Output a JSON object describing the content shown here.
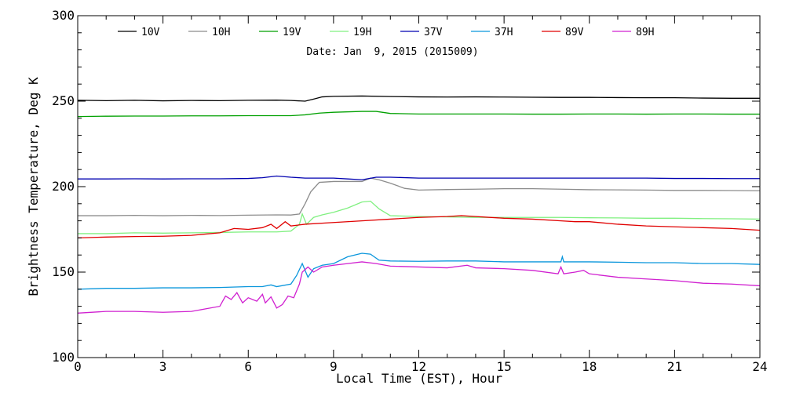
{
  "chart_data": {
    "type": "line",
    "title": "Date: Jan  9, 2015 (2015009)",
    "xlabel": "Local Time (EST), Hour",
    "ylabel": "Brightness Temperature, Deg K",
    "xlim": [
      0,
      24
    ],
    "ylim": [
      100,
      300
    ],
    "xticks": [
      0,
      3,
      6,
      9,
      12,
      15,
      18,
      21,
      24
    ],
    "yticks": [
      100,
      150,
      200,
      250,
      300
    ],
    "grid": false,
    "legend_position": "top",
    "series": [
      {
        "name": "10V",
        "color": "#000000",
        "points": [
          [
            0,
            250.5
          ],
          [
            1,
            250.3
          ],
          [
            2,
            250.5
          ],
          [
            3,
            250.2
          ],
          [
            4,
            250.4
          ],
          [
            5,
            250.3
          ],
          [
            6,
            250.5
          ],
          [
            7,
            250.6
          ],
          [
            7.5,
            250.4
          ],
          [
            8,
            250.0
          ],
          [
            8.3,
            251.2
          ],
          [
            8.6,
            252.5
          ],
          [
            9,
            252.8
          ],
          [
            10,
            253.0
          ],
          [
            11,
            252.7
          ],
          [
            12,
            252.5
          ],
          [
            13,
            252.4
          ],
          [
            14,
            252.5
          ],
          [
            15,
            252.4
          ],
          [
            16,
            252.3
          ],
          [
            17,
            252.2
          ],
          [
            18,
            252.2
          ],
          [
            19,
            252.1
          ],
          [
            20,
            252.0
          ],
          [
            21,
            252.0
          ],
          [
            22,
            251.8
          ],
          [
            23,
            251.7
          ],
          [
            24,
            251.7
          ]
        ]
      },
      {
        "name": "10H",
        "color": "#8c8c8c",
        "points": [
          [
            0,
            183
          ],
          [
            1,
            183
          ],
          [
            2,
            183.2
          ],
          [
            3,
            183
          ],
          [
            4,
            183.2
          ],
          [
            5,
            183.1
          ],
          [
            6,
            183.3
          ],
          [
            7,
            183.5
          ],
          [
            7.5,
            183.4
          ],
          [
            7.8,
            184
          ],
          [
            8,
            190
          ],
          [
            8.2,
            197
          ],
          [
            8.5,
            202.5
          ],
          [
            9,
            203
          ],
          [
            10,
            203
          ],
          [
            10.3,
            205
          ],
          [
            10.6,
            204
          ],
          [
            11,
            202
          ],
          [
            11.5,
            199
          ],
          [
            12,
            198
          ],
          [
            13,
            198.3
          ],
          [
            14,
            198.5
          ],
          [
            15,
            198.8
          ],
          [
            16,
            198.8
          ],
          [
            17,
            198.5
          ],
          [
            18,
            198.2
          ],
          [
            19,
            198.1
          ],
          [
            20,
            198
          ],
          [
            21,
            197.8
          ],
          [
            22,
            197.8
          ],
          [
            23,
            197.7
          ],
          [
            24,
            197.6
          ]
        ]
      },
      {
        "name": "19V",
        "color": "#00a000",
        "points": [
          [
            0,
            241
          ],
          [
            1,
            241.2
          ],
          [
            2,
            241.3
          ],
          [
            3,
            241.3
          ],
          [
            4,
            241.4
          ],
          [
            5,
            241.4
          ],
          [
            6,
            241.5
          ],
          [
            7,
            241.5
          ],
          [
            7.5,
            241.5
          ],
          [
            8,
            242
          ],
          [
            8.5,
            243
          ],
          [
            9,
            243.5
          ],
          [
            10,
            244
          ],
          [
            10.5,
            244
          ],
          [
            11,
            242.8
          ],
          [
            12,
            242.5
          ],
          [
            13,
            242.5
          ],
          [
            14,
            242.5
          ],
          [
            15,
            242.5
          ],
          [
            16,
            242.4
          ],
          [
            17,
            242.4
          ],
          [
            18,
            242.5
          ],
          [
            19,
            242.5
          ],
          [
            20,
            242.4
          ],
          [
            21,
            242.5
          ],
          [
            22,
            242.5
          ],
          [
            23,
            242.4
          ],
          [
            24,
            242.4
          ]
        ]
      },
      {
        "name": "19H",
        "color": "#80f080",
        "points": [
          [
            0,
            172.5
          ],
          [
            1,
            172.5
          ],
          [
            2,
            173
          ],
          [
            3,
            172.8
          ],
          [
            4,
            173
          ],
          [
            5,
            173.2
          ],
          [
            6,
            173.5
          ],
          [
            7,
            173.5
          ],
          [
            7.5,
            174
          ],
          [
            7.8,
            178
          ],
          [
            7.9,
            184
          ],
          [
            8.05,
            178
          ],
          [
            8.3,
            182
          ],
          [
            8.6,
            183.5
          ],
          [
            9,
            185
          ],
          [
            9.5,
            187.5
          ],
          [
            10,
            191
          ],
          [
            10.3,
            191.5
          ],
          [
            10.6,
            187
          ],
          [
            11,
            183
          ],
          [
            12,
            182.5
          ],
          [
            13,
            182.3
          ],
          [
            14,
            182
          ],
          [
            15,
            182
          ],
          [
            16,
            182
          ],
          [
            17,
            182
          ],
          [
            18,
            181.8
          ],
          [
            19,
            181.7
          ],
          [
            20,
            181.5
          ],
          [
            21,
            181.5
          ],
          [
            22,
            181.3
          ],
          [
            23,
            181.2
          ],
          [
            24,
            181
          ]
        ]
      },
      {
        "name": "37V",
        "color": "#0000b0",
        "points": [
          [
            0,
            204.5
          ],
          [
            1,
            204.5
          ],
          [
            2,
            204.6
          ],
          [
            3,
            204.5
          ],
          [
            4,
            204.6
          ],
          [
            5,
            204.6
          ],
          [
            6,
            204.8
          ],
          [
            6.5,
            205.2
          ],
          [
            7,
            206.2
          ],
          [
            7.5,
            205.5
          ],
          [
            8,
            205
          ],
          [
            9,
            205
          ],
          [
            9.5,
            204.5
          ],
          [
            10,
            204
          ],
          [
            10.5,
            205.5
          ],
          [
            11,
            205.5
          ],
          [
            12,
            205
          ],
          [
            13,
            205
          ],
          [
            14,
            205
          ],
          [
            15,
            205
          ],
          [
            16,
            205
          ],
          [
            17,
            205
          ],
          [
            18,
            205
          ],
          [
            19,
            205
          ],
          [
            20,
            205
          ],
          [
            21,
            204.8
          ],
          [
            22,
            204.8
          ],
          [
            23,
            204.7
          ],
          [
            24,
            204.7
          ]
        ]
      },
      {
        "name": "37H",
        "color": "#0a96dc",
        "points": [
          [
            0,
            140
          ],
          [
            1,
            140.5
          ],
          [
            2,
            140.5
          ],
          [
            3,
            140.8
          ],
          [
            4,
            140.8
          ],
          [
            5,
            141
          ],
          [
            6,
            141.5
          ],
          [
            6.5,
            141.5
          ],
          [
            6.8,
            142.5
          ],
          [
            7,
            141.5
          ],
          [
            7.5,
            143
          ],
          [
            7.7,
            148
          ],
          [
            7.9,
            155
          ],
          [
            8.1,
            147
          ],
          [
            8.3,
            152
          ],
          [
            8.6,
            154
          ],
          [
            9,
            155
          ],
          [
            9.5,
            159
          ],
          [
            10,
            161
          ],
          [
            10.3,
            160.5
          ],
          [
            10.6,
            157
          ],
          [
            11,
            156.5
          ],
          [
            12,
            156.3
          ],
          [
            13,
            156.5
          ],
          [
            14,
            156.5
          ],
          [
            15,
            156
          ],
          [
            16,
            156
          ],
          [
            17,
            156
          ],
          [
            17.05,
            159
          ],
          [
            17.1,
            156
          ],
          [
            18,
            156
          ],
          [
            19,
            155.8
          ],
          [
            20,
            155.5
          ],
          [
            21,
            155.5
          ],
          [
            22,
            155
          ],
          [
            23,
            155
          ],
          [
            24,
            154.5
          ]
        ]
      },
      {
        "name": "89V",
        "color": "#e00000",
        "points": [
          [
            0,
            170
          ],
          [
            1,
            170.5
          ],
          [
            2,
            170.8
          ],
          [
            3,
            171
          ],
          [
            4,
            171.5
          ],
          [
            5,
            173
          ],
          [
            5.5,
            175.5
          ],
          [
            6,
            175
          ],
          [
            6.5,
            176
          ],
          [
            6.8,
            178
          ],
          [
            7,
            175.5
          ],
          [
            7.3,
            179.5
          ],
          [
            7.5,
            177
          ],
          [
            8,
            178
          ],
          [
            9,
            179
          ],
          [
            10,
            180
          ],
          [
            11,
            181
          ],
          [
            12,
            182
          ],
          [
            13,
            182.5
          ],
          [
            13.5,
            183
          ],
          [
            14,
            182.5
          ],
          [
            15,
            181.5
          ],
          [
            16,
            181
          ],
          [
            17,
            180
          ],
          [
            17.5,
            179.5
          ],
          [
            18,
            179.5
          ],
          [
            19,
            178
          ],
          [
            20,
            177
          ],
          [
            21,
            176.5
          ],
          [
            22,
            176
          ],
          [
            23,
            175.5
          ],
          [
            24,
            174.5
          ]
        ]
      },
      {
        "name": "89H",
        "color": "#d020d0",
        "points": [
          [
            0,
            126
          ],
          [
            1,
            127
          ],
          [
            2,
            127
          ],
          [
            3,
            126.5
          ],
          [
            4,
            127
          ],
          [
            4.5,
            128.5
          ],
          [
            5,
            130
          ],
          [
            5.2,
            136
          ],
          [
            5.4,
            134
          ],
          [
            5.6,
            138
          ],
          [
            5.8,
            132
          ],
          [
            6,
            135
          ],
          [
            6.3,
            133
          ],
          [
            6.5,
            137
          ],
          [
            6.6,
            132
          ],
          [
            6.8,
            135.5
          ],
          [
            7,
            129
          ],
          [
            7.2,
            131
          ],
          [
            7.4,
            136
          ],
          [
            7.6,
            135
          ],
          [
            7.8,
            143
          ],
          [
            7.9,
            150
          ],
          [
            8.1,
            153
          ],
          [
            8.3,
            150
          ],
          [
            8.6,
            153
          ],
          [
            9,
            154
          ],
          [
            9.5,
            155
          ],
          [
            10,
            156
          ],
          [
            10.5,
            155
          ],
          [
            11,
            153.5
          ],
          [
            12,
            153
          ],
          [
            13,
            152.5
          ],
          [
            13.7,
            154
          ],
          [
            14,
            152.5
          ],
          [
            15,
            152
          ],
          [
            16,
            151
          ],
          [
            16.9,
            149
          ],
          [
            17,
            153
          ],
          [
            17.1,
            149
          ],
          [
            17.5,
            150
          ],
          [
            17.8,
            151
          ],
          [
            18,
            149
          ],
          [
            19,
            147
          ],
          [
            20,
            146
          ],
          [
            21,
            145
          ],
          [
            22,
            143.5
          ],
          [
            23,
            143
          ],
          [
            24,
            142
          ]
        ]
      }
    ]
  }
}
